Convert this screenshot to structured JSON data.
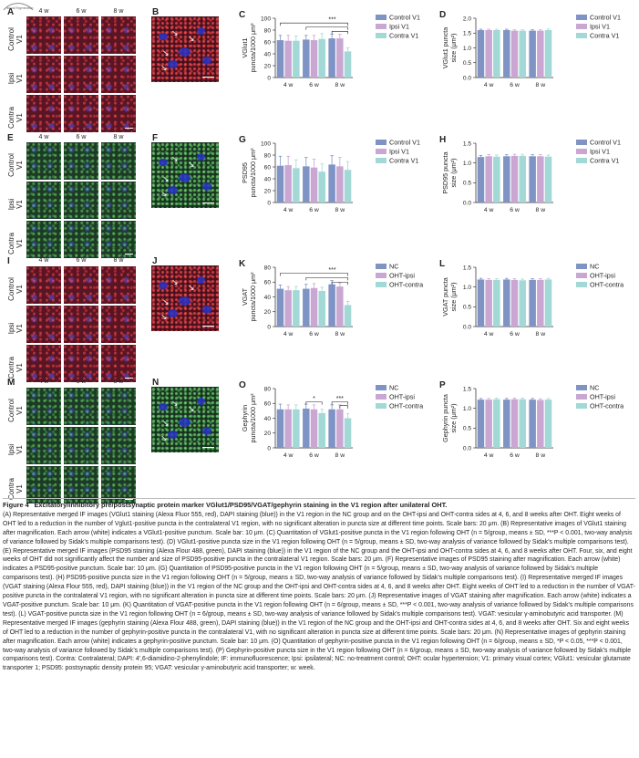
{
  "logo_text": "Neural Regeneration",
  "columns": [
    "4 w",
    "6 w",
    "8 w"
  ],
  "row_labels_control": [
    "Control V1",
    "Ipsi V1",
    "Contra V1"
  ],
  "panel_letters": [
    "A",
    "B",
    "C",
    "D",
    "E",
    "F",
    "G",
    "H",
    "I",
    "J",
    "K",
    "L",
    "M",
    "N",
    "O",
    "P"
  ],
  "colors": {
    "control": "#7f93c5",
    "ipsi": "#c9a7d2",
    "contra": "#a2d8d5",
    "nc": "#7f93c5",
    "oht_ipsi": "#c9a7d2",
    "oht_contra": "#a2d8d5"
  },
  "chart_data": [
    {
      "id": "C",
      "type": "bar",
      "categories": [
        "4 w",
        "6 w",
        "8 w"
      ],
      "ylabel_lines": [
        "VGlut1",
        "puncta/1000 μm²"
      ],
      "ylim": [
        0,
        100
      ],
      "yticks": [
        0,
        20,
        40,
        60,
        80,
        100
      ],
      "series": [
        {
          "name": "Control V1",
          "values": [
            63,
            64,
            66
          ],
          "err": [
            8,
            7,
            7
          ]
        },
        {
          "name": "Ipsi V1",
          "values": [
            62,
            63,
            66
          ],
          "err": [
            9,
            8,
            7
          ]
        },
        {
          "name": "Contra V1",
          "values": [
            62,
            65,
            44
          ],
          "err": [
            8,
            9,
            6
          ]
        }
      ],
      "annotations": [
        {
          "text": "***",
          "from": [
            0,
            0
          ],
          "to": [
            2,
            2
          ],
          "level": 92
        },
        {
          "text": "",
          "from": [
            1,
            0
          ],
          "to": [
            2,
            2
          ],
          "level": 85
        },
        {
          "text": "",
          "from": [
            2,
            0
          ],
          "to": [
            2,
            2
          ],
          "level": 78
        }
      ]
    },
    {
      "id": "D",
      "type": "bar",
      "categories": [
        "4 w",
        "6 w",
        "8 w"
      ],
      "ylabel_lines": [
        "VGlut1 puncta",
        "size (μm²)"
      ],
      "ylim": [
        0,
        2.0
      ],
      "yticks": [
        0,
        0.5,
        1.0,
        1.5,
        2.0
      ],
      "series": [
        {
          "name": "Control V1",
          "values": [
            1.6,
            1.6,
            1.58
          ],
          "err": [
            0.03,
            0.03,
            0.03
          ]
        },
        {
          "name": "Ipsi V1",
          "values": [
            1.6,
            1.58,
            1.58
          ],
          "err": [
            0.03,
            0.03,
            0.03
          ]
        },
        {
          "name": "Contra V1",
          "values": [
            1.6,
            1.58,
            1.6
          ],
          "err": [
            0.03,
            0.03,
            0.04
          ]
        }
      ],
      "annotations": []
    },
    {
      "id": "G",
      "type": "bar",
      "categories": [
        "4 w",
        "6 w",
        "8 w"
      ],
      "ylabel_lines": [
        "PSD95",
        "puncta/1000 μm²"
      ],
      "ylim": [
        0,
        100
      ],
      "yticks": [
        0,
        20,
        40,
        60,
        80,
        100
      ],
      "series": [
        {
          "name": "Control V1",
          "values": [
            62,
            61,
            64
          ],
          "err": [
            16,
            15,
            15
          ]
        },
        {
          "name": "Ipsi V1",
          "values": [
            63,
            59,
            61
          ],
          "err": [
            15,
            14,
            15
          ]
        },
        {
          "name": "Contra V1",
          "values": [
            58,
            52,
            55
          ],
          "err": [
            14,
            13,
            14
          ]
        }
      ],
      "annotations": []
    },
    {
      "id": "H",
      "type": "bar",
      "categories": [
        "4 w",
        "6 w",
        "8 w"
      ],
      "ylabel_lines": [
        "PSD95 puncta",
        "size (μm²)"
      ],
      "ylim": [
        0,
        1.5
      ],
      "yticks": [
        0,
        0.5,
        1.0,
        1.5
      ],
      "series": [
        {
          "name": "Control V1",
          "values": [
            1.15,
            1.17,
            1.17
          ],
          "err": [
            0.04,
            0.04,
            0.04
          ]
        },
        {
          "name": "Ipsi V1",
          "values": [
            1.17,
            1.18,
            1.17
          ],
          "err": [
            0.04,
            0.04,
            0.04
          ]
        },
        {
          "name": "Contra V1",
          "values": [
            1.16,
            1.18,
            1.16
          ],
          "err": [
            0.04,
            0.04,
            0.04
          ]
        }
      ],
      "annotations": []
    },
    {
      "id": "K",
      "type": "bar",
      "categories": [
        "4 w",
        "6 w",
        "8 w"
      ],
      "ylabel_lines": [
        "VGAT",
        "puncta/1000 μm²"
      ],
      "ylim": [
        0,
        80
      ],
      "yticks": [
        0,
        20,
        40,
        60,
        80
      ],
      "series": [
        {
          "name": "NC",
          "values": [
            51,
            51,
            57
          ],
          "err": [
            5,
            6,
            5
          ]
        },
        {
          "name": "OHT-ipsi",
          "values": [
            49,
            52,
            54
          ],
          "err": [
            5,
            6,
            5
          ]
        },
        {
          "name": "OHT-contra",
          "values": [
            49,
            48,
            29
          ],
          "err": [
            5,
            5,
            5
          ]
        }
      ],
      "annotations": [
        {
          "text": "***",
          "from": [
            0,
            0
          ],
          "to": [
            2,
            2
          ],
          "level": 72
        },
        {
          "text": "",
          "from": [
            1,
            0
          ],
          "to": [
            2,
            2
          ],
          "level": 66
        },
        {
          "text": "",
          "from": [
            2,
            0
          ],
          "to": [
            2,
            2
          ],
          "level": 60
        }
      ]
    },
    {
      "id": "L",
      "type": "bar",
      "categories": [
        "4 w",
        "6 w",
        "8 w"
      ],
      "ylabel_lines": [
        "VGAT puncta",
        "size (μm²)"
      ],
      "ylim": [
        0,
        1.5
      ],
      "yticks": [
        0,
        0.5,
        1.0,
        1.5
      ],
      "series": [
        {
          "name": "NC",
          "values": [
            1.19,
            1.19,
            1.18
          ],
          "err": [
            0.03,
            0.03,
            0.03
          ]
        },
        {
          "name": "OHT-ipsi",
          "values": [
            1.18,
            1.18,
            1.18
          ],
          "err": [
            0.03,
            0.03,
            0.03
          ]
        },
        {
          "name": "OHT-contra",
          "values": [
            1.18,
            1.17,
            1.19
          ],
          "err": [
            0.03,
            0.03,
            0.03
          ]
        }
      ],
      "annotations": []
    },
    {
      "id": "O",
      "type": "bar",
      "categories": [
        "4 w",
        "6 w",
        "8 w"
      ],
      "ylabel_lines": [
        "Gephyrin",
        "puncta/1000 μm²"
      ],
      "ylim": [
        0,
        80
      ],
      "yticks": [
        0,
        20,
        40,
        60,
        80
      ],
      "series": [
        {
          "name": "NC",
          "values": [
            52,
            53,
            52
          ],
          "err": [
            7,
            6,
            6
          ]
        },
        {
          "name": "OHT-ipsi",
          "values": [
            52,
            52,
            52
          ],
          "err": [
            6,
            6,
            6
          ]
        },
        {
          "name": "OHT-contra",
          "values": [
            52,
            47,
            40
          ],
          "err": [
            6,
            5,
            6
          ]
        }
      ],
      "annotations": [
        {
          "text": "*",
          "from": [
            1,
            0
          ],
          "to": [
            1,
            2
          ],
          "level": 62
        },
        {
          "text": "***",
          "from": [
            2,
            0
          ],
          "to": [
            2,
            2
          ],
          "level": 62
        },
        {
          "text": "",
          "from": [
            2,
            1
          ],
          "to": [
            2,
            2
          ],
          "level": 57
        }
      ]
    },
    {
      "id": "P",
      "type": "bar",
      "categories": [
        "4 w",
        "6 w",
        "8 w"
      ],
      "ylabel_lines": [
        "Gephyrin puncta",
        "size (μm²)"
      ],
      "ylim": [
        0,
        1.5
      ],
      "yticks": [
        0,
        0.5,
        1.0,
        1.5
      ],
      "series": [
        {
          "name": "NC",
          "values": [
            1.22,
            1.22,
            1.22
          ],
          "err": [
            0.03,
            0.03,
            0.03
          ]
        },
        {
          "name": "OHT-ipsi",
          "values": [
            1.22,
            1.23,
            1.21
          ],
          "err": [
            0.03,
            0.03,
            0.03
          ]
        },
        {
          "name": "OHT-contra",
          "values": [
            1.23,
            1.23,
            1.22
          ],
          "err": [
            0.03,
            0.03,
            0.03
          ]
        }
      ],
      "annotations": []
    }
  ],
  "caption": {
    "title": "Figure 4  Excitatory/inhibitory pre/postsynaptic protein marker VGlut1/PSD95/VGAT/gephyrin staining in the V1 region after unilateral OHT.",
    "body": "(A) Representative merged IF images (VGlut1 staining (Alexa Fluor 555, red), DAPI staining (blue)) in the V1 region in the NC group and on the OHT-ipsi and OHT-contra sides at 4, 6, and 8 weeks after OHT. Eight weeks of OHT led to a reduction in the number of Vglut1-positive puncta in the contralateral V1 region, with no significant alteration in puncta size at different time points. Scale bars: 20 μm. (B) Representative images of VGlut1 staining after magnification. Each arrow (white) indicates a VGlut1-positive punctum. Scale bar: 10 μm. (C) Quantitation of VGlut1-positive puncta in the V1 region following OHT (n = 5/group, means ± SD, ***P < 0.001, two-way analysis of variance followed by Sidak’s multiple comparisons test). (D) VGlut1-positive puncta size in the V1 region following OHT (n = 5/group, means ± SD, two-way analysis of variance followed by Sidak’s multiple comparisons test). (E) Representative merged IF images (PSD95 staining (Alexa Flour 488, green), DAPI staining (blue)) in the V1 region of the NC group and the OHT-ipsi and OHT-contra sides at 4, 6, and 8 weeks after OHT. Four, six, and eight weeks of OHT did not significantly affect the number and size of PSD95-positive puncta in the contralateral V1 region. Scale bars: 20 μm. (F) Representative images of PSD95 staining after magnification. Each arrow (white) indicates a PSD95-positive punctum. Scale bar: 10 μm. (G) Quantitation of PSD95-positive puncta in the V1 region following OHT (n = 5/group, means ± SD, two-way analysis of variance followed by Sidak’s multiple comparisons test). (H) PSD95-positive puncta size in the V1 region following OHT (n = 5/group, means ± SD, two-way analysis of variance followed by Sidak’s multiple comparisons test). (I) Representative merged IF images (VGAT staining (Alexa Flour 555, red), DAPI staining (blue)) in the V1 region of the NC group and the OHT-ipsi and OHT-contra sides at 4, 6, and 8 weeks after OHT. Eight weeks of OHT led to a reduction in the number of VGAT-positive puncta in the contralateral V1 region, with no significant alteration in puncta size at different time points. Scale bars: 20 μm. (J) Representative images of VGAT staining after magnification. Each arrow (white) indicates a VGAT-positive punctum. Scale bar: 10 μm. (K) Quantitation of VGAT-positive puncta in the V1 region following OHT (n = 6/group, means ± SD, ***P < 0.001, two-way analysis of variance followed by Sidak’s multiple comparisons test). (L) VGAT-positive puncta size in the V1 region following OHT (n = 6/group, means ± SD, two-way analysis of variance followed by Sidak’s multiple comparisons test). VGAT: vesicular γ-aminobutyric acid transporter. (M) Representative merged IF images (gephyrin staining (Alexa Flour 488, green), DAPI staining (blue)) in the V1 region of the NC group and the OHT-ipsi and OHT-contra sides at 4, 6, and 8 weeks after OHT. Six and eight weeks of OHT led to a reduction in the number of gephyrin-positive puncta in the contralateral V1, with no significant alteration in puncta size at different time points. Scale bars: 20 μm. (N) Representative images of gephyrin staining after magnification. Each arrow (white) indicates a gephyrin-positive punctum. Scale bar: 10 μm. (O) Quantitation of gephyrin-positive puncta in the V1 region following OHT (n = 6/group, means ± SD, *P < 0.05, ***P < 0.001, two-way analysis of variance followed by Sidak’s multiple comparisons test). (P) Gephyrin-positive puncta size in the V1 region following OHT (n = 6/group, means ± SD, two-way analysis of variance followed by Sidak’s multiple comparisons test). Contra: Contralateral; DAPI: 4′,6-diamidino-2-phenylindole; IF: immunofluorescence; Ipsi: ipsilateral; NC: no-treatment control; OHT: ocular hypertension; V1: primary visual cortex; VGlut1: vesicular glutamate transporter 1; PSD95: postsynaptic density protein 95; VGAT: vesicular γ-aminobutyric acid transporter; w: week."
  }
}
